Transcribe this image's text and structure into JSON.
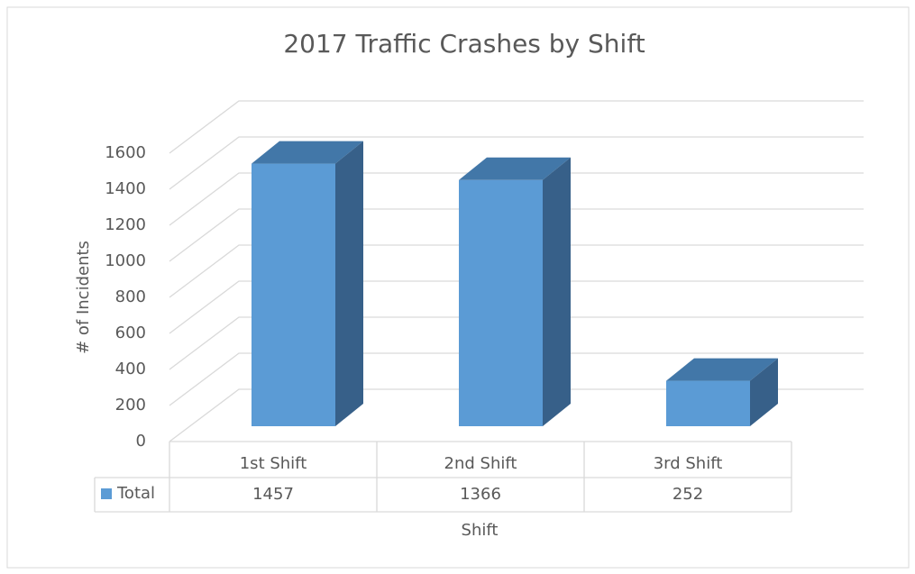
{
  "chart_data": {
    "type": "bar3d",
    "title": "2017 Traffic Crashes by Shift",
    "x_label": "Shift",
    "y_label": "# of Incidents",
    "categories": [
      "1st Shift",
      "2nd Shift",
      "3rd Shift"
    ],
    "series": [
      {
        "name": "Total",
        "color": "#5b9bd5",
        "values": [
          1457,
          1366,
          252
        ]
      }
    ],
    "ylim": [
      0,
      1600
    ],
    "yticks": [
      0,
      200,
      400,
      600,
      800,
      1000,
      1200,
      1400,
      1600
    ],
    "grid": true,
    "data_table": true
  }
}
